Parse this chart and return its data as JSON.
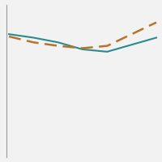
{
  "solid_line": {
    "x": [
      0,
      1,
      2,
      3,
      4,
      5,
      6
    ],
    "y": [
      34.5,
      34.2,
      33.8,
      33.2,
      33.0,
      33.6,
      34.2
    ],
    "color": "#2a8a8c",
    "linewidth": 1.5
  },
  "dashed_line": {
    "x": [
      0,
      1,
      2,
      3,
      4,
      5,
      6
    ],
    "y": [
      34.3,
      33.8,
      33.5,
      33.3,
      33.5,
      34.5,
      35.5
    ],
    "color": "#b8732a",
    "linewidth": 1.8
  },
  "ylim": [
    24,
    37
  ],
  "xlim": [
    -0.1,
    6.1
  ],
  "grid_color": "#d8d8d8",
  "grid_linewidth": 0.6,
  "background_color": "#f2f2f2",
  "plot_background": "#f2f2f2",
  "n_gridlines": 8,
  "spine_color": "#999999",
  "spine_linewidth": 0.8
}
